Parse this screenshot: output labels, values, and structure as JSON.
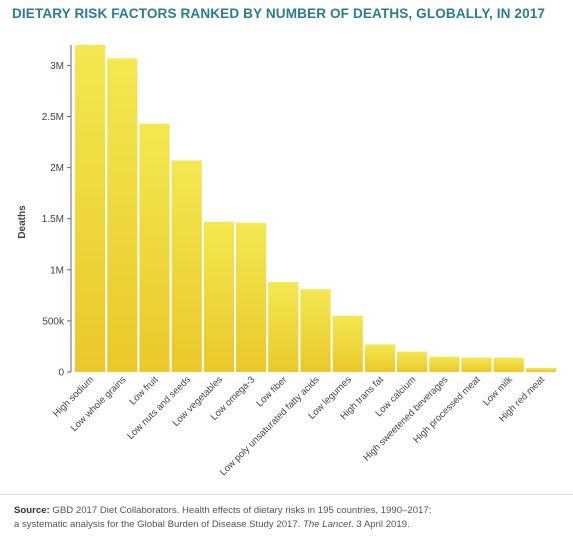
{
  "chart_data": {
    "type": "bar",
    "title": "DIETARY RISK FACTORS RANKED BY NUMBER OF DEATHS, GLOBALLY, IN 2017",
    "ylabel": "Deaths",
    "xlabel": "",
    "ylim": [
      0,
      3200000
    ],
    "yticks": [
      0,
      500000,
      1000000,
      1500000,
      2000000,
      2500000,
      3000000
    ],
    "ytick_labels": [
      "0",
      "500k",
      "1M",
      "1.5M",
      "2M",
      "2.5M",
      "3M"
    ],
    "categories": [
      "High sodium",
      "Low whole grains",
      "Low fruit",
      "Low nuts and seeds",
      "Low vegetables",
      "Low omega-3",
      "Low fiber",
      "Low poly unsaturated fatty acids",
      "Low legumes",
      "High trans fat",
      "Low calcium",
      "High sweetened beverages",
      "High processed meat",
      "Low milk",
      "High red meat"
    ],
    "values": [
      3200000,
      3070000,
      2430000,
      2070000,
      1470000,
      1460000,
      880000,
      810000,
      550000,
      270000,
      200000,
      150000,
      140000,
      140000,
      40000
    ],
    "bar_color_top": "#f4e751",
    "bar_color_bottom": "#e9c82a",
    "grid": false
  },
  "source": {
    "label": "Source:",
    "text1": " GBD 2017 Diet Collaborators. Health effects of dietary risks in 195 countries, 1990–2017:",
    "text2": "a systematic analysis for the Global Burden of Disease Study 2017. ",
    "journal": "The Lancet",
    "text3": ". 3 April 2019."
  },
  "colors": {
    "title": "#2a7d8c",
    "axis": "#666666"
  }
}
